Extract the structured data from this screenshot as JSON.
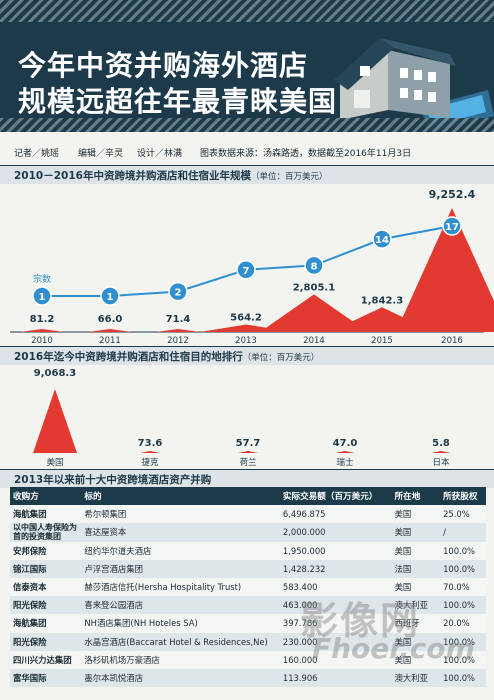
{
  "header": {
    "title_line1": "今年中资并购海外酒店",
    "title_line2": "规模远超往年最青睐美国"
  },
  "credits": {
    "reporter": "记者／姚瑶",
    "editor": "编辑／辛灵",
    "design": "设计／林满",
    "source": "图表数据来源：汤森路透，数据截至2016年11月3日"
  },
  "chart_data": [
    {
      "type": "area",
      "title": "2010－2016年中资跨境并购酒店和住宿业年规模",
      "unit": "（单位：百万美元）",
      "series_label": "宗数",
      "categories": [
        "2010",
        "2011",
        "2012",
        "2013",
        "2014",
        "2015",
        "2016"
      ],
      "values": [
        81.2,
        66.0,
        71.4,
        564.2,
        2805.1,
        1842.3,
        9252.4
      ],
      "value_labels": [
        "81.2",
        "66.0",
        "71.4",
        "564.2",
        "2,805.1",
        "1,842.3",
        "9,252.4"
      ],
      "deal_counts": [
        1,
        1,
        2,
        7,
        8,
        14,
        17
      ]
    },
    {
      "type": "area",
      "title": "2016年迄今中资跨境并购酒店和住宿目的地排行",
      "unit": "（单位：百万美元）",
      "categories": [
        "美国",
        "捷克",
        "荷兰",
        "瑞士",
        "日本"
      ],
      "values": [
        9068.3,
        73.6,
        57.7,
        47.0,
        5.8
      ],
      "value_labels": [
        "9,068.3",
        "73.6",
        "57.7",
        "47.0",
        "5.8"
      ]
    },
    {
      "type": "table",
      "title": "2013年以来前十大中资跨境酒店资产并购",
      "columns": [
        "收购方",
        "标的",
        "实际交易额（百万美元）",
        "所在地",
        "所获股权"
      ],
      "rows": [
        [
          "海航集团",
          "希尔顿集团",
          "6,496.875",
          "美国",
          "25.0%"
        ],
        [
          "以中国人寿保险为首的投资集团",
          "喜达屋资本",
          "2,000.000",
          "美国",
          "/"
        ],
        [
          "安邦保险",
          "纽约华尔道夫酒店",
          "1,950.000",
          "美国",
          "100.0%"
        ],
        [
          "锦江国际",
          "卢浮宫酒店集团",
          "1,428.232",
          "法国",
          "100.0%"
        ],
        [
          "信泰资本",
          "赫莎酒店信托(Hersha Hospitality Trust)",
          "583.400",
          "美国",
          "70.0%"
        ],
        [
          "阳光保险",
          "喜来登公园酒店",
          "463.000",
          "澳大利亚",
          "100.0%"
        ],
        [
          "海航集团",
          "NH酒店集团(NH Hoteles SA)",
          "397.786",
          "西班牙",
          "20.0%"
        ],
        [
          "阳光保险",
          "水晶宫酒店(Baccarat Hotel & Residences,Ne)",
          "230.000",
          "美国",
          "100.0%"
        ],
        [
          "四川兴力达集团",
          "洛杉矶机场万豪酒店",
          "160.000",
          "美国",
          "100.0%"
        ],
        [
          "富华国际",
          "墨尔本凯悦酒店",
          "113.906",
          "澳大利亚",
          "100.0%"
        ]
      ]
    }
  ],
  "watermark": {
    "line1": "影像网",
    "line2": "Fhoer.com"
  },
  "colors": {
    "navy": "#1d3a4a",
    "red": "#e23a30",
    "blue": "#2f8fd1"
  }
}
